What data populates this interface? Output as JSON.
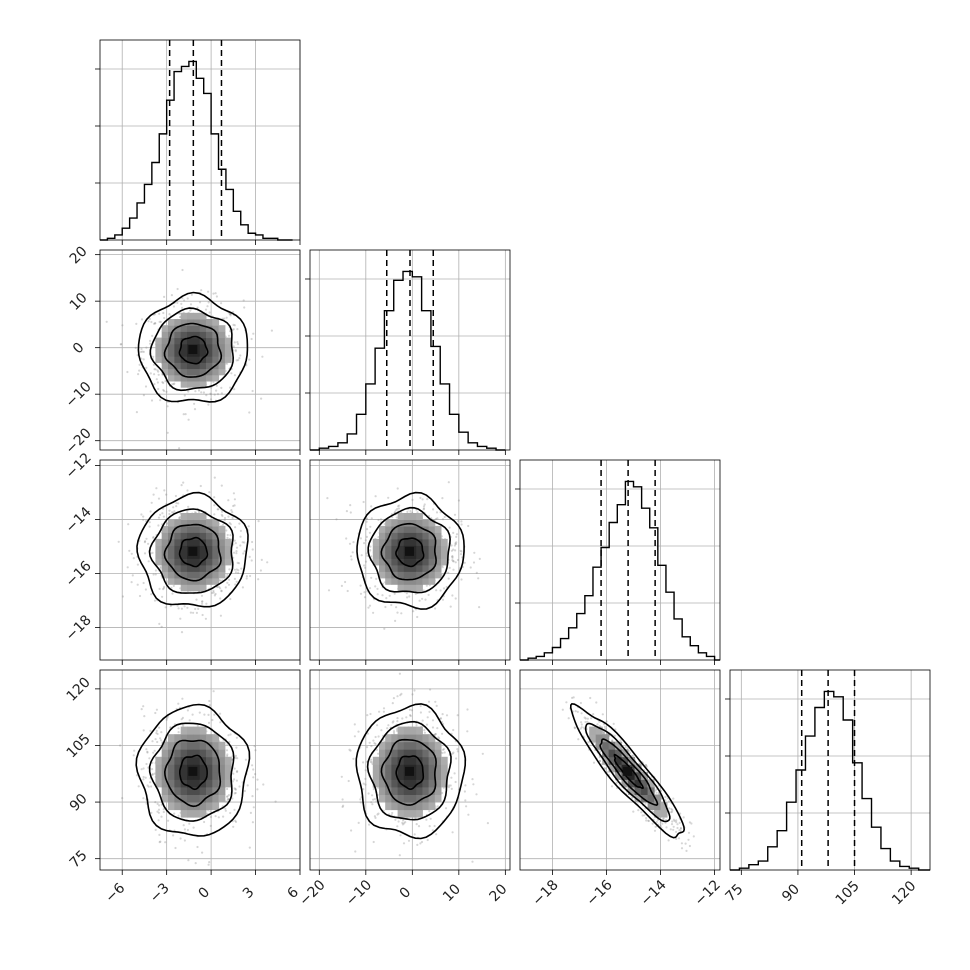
{
  "chart_data": {
    "type": "corner",
    "n_params": 4,
    "params": [
      {
        "mean": -1.2,
        "std": 1.6,
        "range": [
          -7.5,
          6
        ],
        "ticks": [
          -6,
          -3,
          0,
          3,
          6
        ],
        "tick_labels": [
          "−6",
          "−3",
          "0",
          "3",
          "6"
        ],
        "quantiles": [
          -2.8,
          -1.2,
          0.7
        ],
        "hist_bins": [
          -7.5,
          -7.0,
          -6.5,
          -6.0,
          -5.5,
          -5.0,
          -4.5,
          -4.0,
          -3.5,
          -3.0,
          -2.5,
          -2.0,
          -1.5,
          -1.0,
          -0.5,
          0.0,
          0.5,
          1.0,
          1.5,
          2.0,
          2.5,
          3.0,
          3.5,
          4.0,
          4.5,
          5.0,
          5.5
        ],
        "hist_counts": [
          0,
          1,
          3,
          7,
          13,
          22,
          33,
          46,
          63,
          83,
          100,
          103,
          106,
          96,
          87,
          63,
          42,
          30,
          17,
          9,
          4,
          3,
          1,
          1,
          0,
          0
        ]
      },
      {
        "mean": -0.5,
        "std": 5.0,
        "range": [
          -22,
          21
        ],
        "ticks": [
          -20,
          -10,
          0,
          10,
          20
        ],
        "tick_labels": [
          "−20",
          "−10",
          "0",
          "10",
          "20"
        ],
        "quantiles": [
          -5.5,
          -0.5,
          4.5
        ],
        "hist_bins": [
          -22,
          -20,
          -18,
          -16,
          -14,
          -12,
          -10,
          -8,
          -6,
          -4,
          -2,
          0,
          2,
          4,
          6,
          8,
          10,
          12,
          14,
          16,
          18,
          20
        ],
        "hist_counts": [
          0,
          1,
          2,
          4,
          9,
          20,
          37,
          57,
          78,
          95,
          100,
          97,
          78,
          58,
          37,
          20,
          10,
          4,
          2,
          1,
          0
        ]
      },
      {
        "mean": -15.2,
        "std": 0.9,
        "range": [
          -19.2,
          -11.8
        ],
        "ticks": [
          -18,
          -16,
          -14,
          -12
        ],
        "tick_labels": [
          "−18",
          "−16",
          "−14",
          "−12"
        ],
        "quantiles": [
          -16.2,
          -15.2,
          -14.2
        ],
        "hist_bins": [
          -19.2,
          -18.9,
          -18.6,
          -18.3,
          -18.0,
          -17.7,
          -17.4,
          -17.1,
          -16.8,
          -16.5,
          -16.2,
          -15.9,
          -15.6,
          -15.3,
          -15.0,
          -14.7,
          -14.4,
          -14.1,
          -13.8,
          -13.5,
          -13.2,
          -12.9,
          -12.6,
          -12.3,
          -12.0,
          -11.8
        ],
        "hist_counts": [
          0,
          1,
          2,
          4,
          7,
          12,
          18,
          26,
          36,
          52,
          63,
          77,
          87,
          100,
          97,
          85,
          74,
          53,
          38,
          23,
          13,
          8,
          4,
          2,
          0
        ]
      },
      {
        "mean": 98,
        "std": 7.5,
        "range": [
          72,
          125
        ],
        "ticks": [
          75,
          90,
          105,
          120
        ],
        "tick_labels": [
          "75",
          "90",
          "105",
          "120"
        ],
        "quantiles": [
          91,
          98,
          105
        ],
        "hist_bins": [
          72,
          74.5,
          77,
          79.5,
          82,
          84.5,
          87,
          89.5,
          92,
          94.5,
          97,
          99.5,
          102,
          104.5,
          107,
          109.5,
          112,
          114.5,
          117,
          119.5,
          122,
          125
        ],
        "hist_counts": [
          0,
          1,
          3,
          5,
          13,
          22,
          38,
          56,
          75,
          91,
          100,
          97,
          84,
          60,
          40,
          24,
          12,
          5,
          2,
          1,
          0
        ]
      }
    ],
    "correlations": {
      "1-0": 0.0,
      "2-0": 0.0,
      "2-1": 0.0,
      "3-0": 0.0,
      "3-1": 0.0,
      "3-2": -0.92
    },
    "contour_levels_sigma": [
      0.5,
      1.0,
      1.5,
      2.0
    ],
    "grid": true,
    "title": "",
    "xlabel": "",
    "ylabel": ""
  }
}
